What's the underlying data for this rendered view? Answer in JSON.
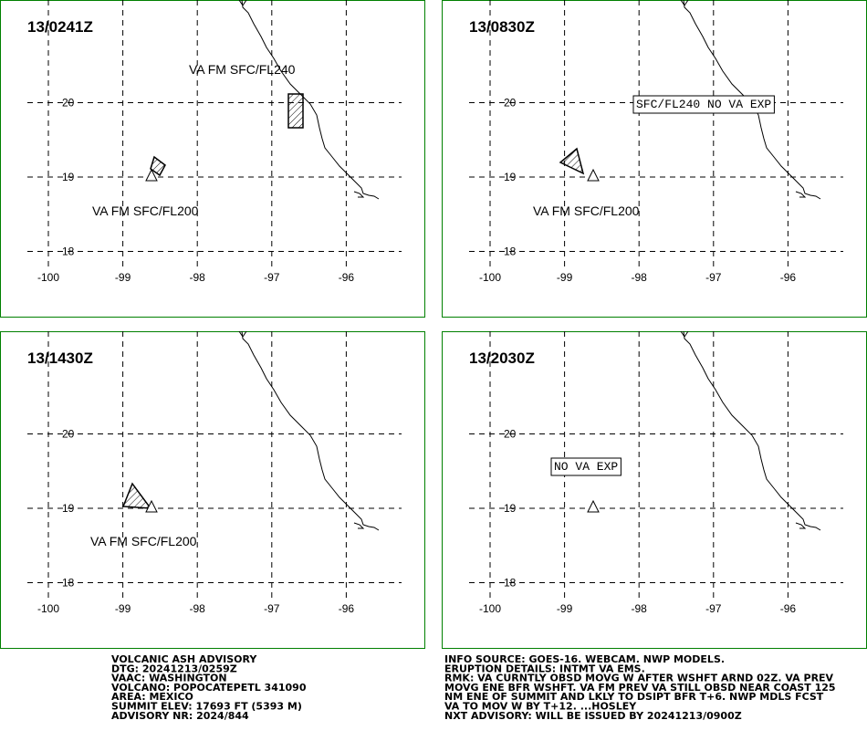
{
  "map": {
    "lon_ticks": [
      -100,
      -99,
      -98,
      -97,
      -96
    ],
    "lat_ticks": [
      20,
      19,
      18
    ]
  },
  "panels": [
    {
      "time": "13/0241Z",
      "labels": [
        "VA FM SFC/FL240",
        "VA FM SFC/FL200"
      ]
    },
    {
      "time": "13/0830Z",
      "labels": [
        "SFC/FL240 NO VA EXP",
        "VA FM SFC/FL200"
      ]
    },
    {
      "time": "13/1430Z",
      "labels": [
        "VA FM SFC/FL200"
      ]
    },
    {
      "time": "13/2030Z",
      "labels": [
        "NO VA EXP"
      ]
    }
  ],
  "advisory": {
    "left": [
      "VOLCANIC ASH ADVISORY",
      "DTG: 20241213/0259Z",
      "VAAC: WASHINGTON",
      "VOLCANO: POPOCATEPETL 341090",
      "AREA: MEXICO",
      "SUMMIT ELEV: 17693 FT (5393 M)",
      "ADVISORY NR: 2024/844"
    ],
    "right": [
      "INFO SOURCE: GOES-16. WEBCAM. NWP MODELS.",
      "ERUPTION DETAILS: INTMT VA EMS.",
      "RMK: VA CURNTLY OBSD MOVG W AFTER WSHFT ARND 02Z. VA PREV",
      "MOVG ENE BFR WSHFT. VA FM PREV VA STILL OBSD NEAR COAST 125",
      "NM ENE OF SUMMIT AND LKLY TO DSIPT BFR T+6. NWP MDLS FCST",
      "VA TO MOV W BY T+12. ...HOSLEY",
      "NXT ADVISORY: WILL BE ISSUED BY 20241213/0900Z"
    ]
  }
}
